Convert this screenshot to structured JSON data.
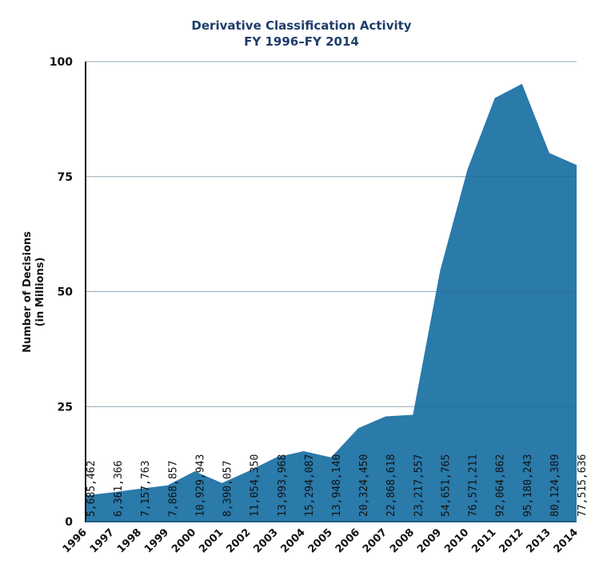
{
  "chart_data": {
    "type": "area",
    "title": "Derivative Classification Activity",
    "subtitle": "FY 1996–FY 2014",
    "xlabel": "",
    "ylabel": "Number of Decisions",
    "ylabel_sub": "(in Millions)",
    "ylim": [
      0,
      100
    ],
    "yticks": [
      0,
      25,
      50,
      75,
      100
    ],
    "grid": true,
    "color": "#2a7aaa",
    "categories": [
      "1996",
      "1997",
      "1998",
      "1999",
      "2000",
      "2001",
      "2002",
      "2003",
      "2004",
      "2005",
      "2006",
      "2007",
      "2008",
      "2009",
      "2010",
      "2011",
      "2012",
      "2013",
      "2014"
    ],
    "values": [
      5685462,
      6361366,
      7157763,
      7868857,
      10929943,
      8390057,
      11054350,
      13993968,
      15294087,
      13948140,
      20324450,
      22868618,
      23217557,
      54651765,
      76571211,
      92064862,
      95180243,
      80124389,
      77515636
    ],
    "data_labels": [
      "5,685,462",
      "6,361,366",
      "7,157,763",
      "7,868,857",
      "10,929,943",
      "8,390,057",
      "11,054,350",
      "13,993,968",
      "15,294,087",
      "13,948,140",
      "20,324,450",
      "22,868,618",
      "23,217,557",
      "54,651,765",
      "76,571,211",
      "92,064,862",
      "95,180,243",
      "80,124,389",
      "77,515,636"
    ]
  }
}
